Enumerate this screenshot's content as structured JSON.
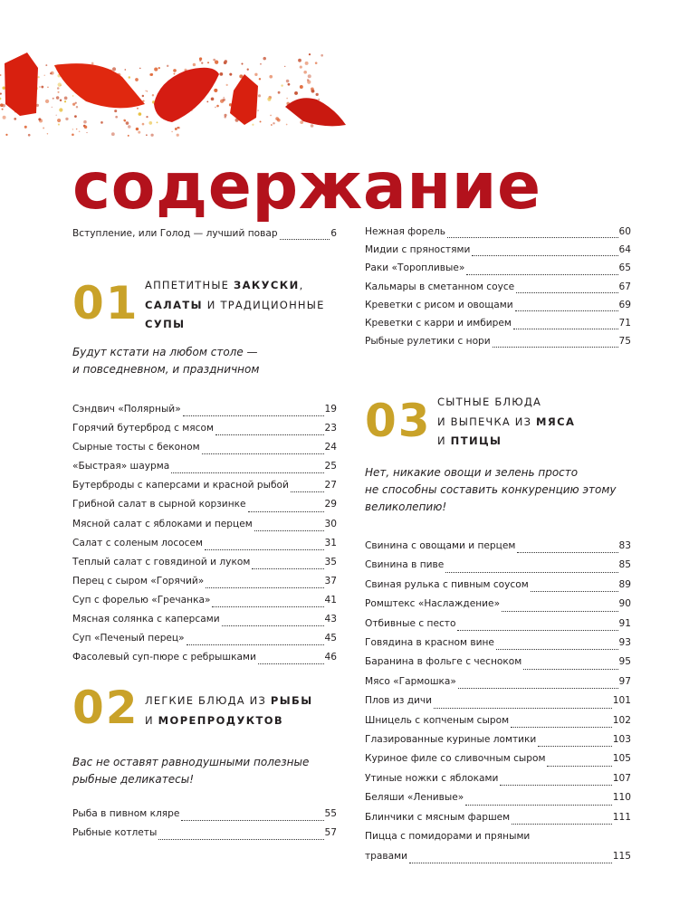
{
  "colors": {
    "title": "#b3121c",
    "section_number": "#c9a229",
    "text": "#231f20"
  },
  "decor": {
    "image": "chili-pepper-slices"
  },
  "title": "содержание",
  "intro": {
    "title": "Вступление, или Голод — лучший повар",
    "page": "6"
  },
  "sections": [
    {
      "number": "01",
      "heading_lines": [
        [
          {
            "text": "Аппетитные ",
            "bold": false
          },
          {
            "text": "закуски",
            "bold": true
          },
          {
            "text": ",",
            "bold": false
          }
        ],
        [
          {
            "text": "салаты",
            "bold": true
          },
          {
            "text": " и традиционные",
            "bold": false
          }
        ],
        [
          {
            "text": "супы",
            "bold": true
          }
        ]
      ],
      "subtitle_lines": [
        "Будут кстати на любом столе —",
        "и повседневном, и праздничном"
      ],
      "entries": [
        {
          "title": "Сэндвич «Полярный»",
          "page": "19"
        },
        {
          "title": "Горячий бутерброд с мясом",
          "page": "23"
        },
        {
          "title": "Сырные тосты с беконом",
          "page": "24"
        },
        {
          "title": "«Быстрая» шаурма",
          "page": "25"
        },
        {
          "title": "Бутерброды с каперсами и красной рыбой",
          "page": "27"
        },
        {
          "title": "Грибной салат в сырной корзинке",
          "page": "29"
        },
        {
          "title": "Мясной салат с яблоками и перцем",
          "page": "30"
        },
        {
          "title": "Салат с соленым лососем",
          "page": "31"
        },
        {
          "title": "Теплый салат с говядиной и луком",
          "page": "35"
        },
        {
          "title": "Перец с сыром «Горячий»",
          "page": "37"
        },
        {
          "title": "Суп с форелью «Гречанка»",
          "page": "41"
        },
        {
          "title": "Мясная солянка с каперсами",
          "page": "43"
        },
        {
          "title": "Суп «Печеный перец»",
          "page": "45"
        },
        {
          "title": "Фасолевый суп-пюре с ребрышками",
          "page": "46"
        }
      ]
    },
    {
      "number": "02",
      "heading_lines": [
        [
          {
            "text": "Легкие блюда из ",
            "bold": false
          },
          {
            "text": "рыбы",
            "bold": true
          }
        ],
        [
          {
            "text": "и ",
            "bold": false
          },
          {
            "text": "морепродуктов",
            "bold": true
          }
        ]
      ],
      "subtitle_lines": [
        "Вас не оставят равнодушными полезные",
        "рыбные деликатесы!"
      ],
      "entries": [
        {
          "title": "Рыба в пивном кляре",
          "page": "55"
        },
        {
          "title": "Рыбные котлеты",
          "page": "57"
        },
        {
          "title": "Нежная форель",
          "page": "60"
        },
        {
          "title": "Мидии с пряностями",
          "page": "64"
        },
        {
          "title": "Раки «Торопливые»",
          "page": "65"
        },
        {
          "title": "Кальмары в сметанном соусе",
          "page": "67"
        },
        {
          "title": "Креветки с рисом и овощами",
          "page": "69"
        },
        {
          "title": "Креветки с карри и имбирем",
          "page": "71"
        },
        {
          "title": "Рыбные рулетики с нори",
          "page": "75"
        }
      ]
    },
    {
      "number": "03",
      "heading_lines": [
        [
          {
            "text": "Сытные блюда",
            "bold": false
          }
        ],
        [
          {
            "text": "и выпечка из ",
            "bold": false
          },
          {
            "text": "мяса",
            "bold": true
          }
        ],
        [
          {
            "text": "и ",
            "bold": false
          },
          {
            "text": "птицы",
            "bold": true
          }
        ]
      ],
      "subtitle_lines": [
        "Нет, никакие овощи и зелень просто",
        "не способны составить конкуренцию этому",
        "великолепию!"
      ],
      "entries": [
        {
          "title": "Свинина с овощами и перцем",
          "page": "83"
        },
        {
          "title": "Свинина в пиве",
          "page": "85"
        },
        {
          "title": "Свиная рулька с пивным соусом",
          "page": "89"
        },
        {
          "title": "Ромштекс «Наслаждение»",
          "page": "90"
        },
        {
          "title": "Отбивные с песто",
          "page": "91"
        },
        {
          "title": "Говядина в красном вине",
          "page": "93"
        },
        {
          "title": "Баранина в фольге с чесноком",
          "page": "95"
        },
        {
          "title": "Мясо «Гармошка»",
          "page": "97"
        },
        {
          "title": "Плов из дичи",
          "page": "101"
        },
        {
          "title": "Шницель с копченым сыром",
          "page": "102"
        },
        {
          "title": "Глазированные куриные ломтики",
          "page": "103"
        },
        {
          "title": "Куриное филе со сливочным сыром",
          "page": "105"
        },
        {
          "title": "Утиные ножки с яблоками",
          "page": "107"
        },
        {
          "title": "Беляши «Ленивые»",
          "page": "110"
        },
        {
          "title": "Блинчики с мясным фаршем",
          "page": "111"
        },
        {
          "title": "Пицца с помидорами и пряными травами",
          "title_line1": "Пицца с помидорами и пряными",
          "title_line2": "травами",
          "page": "115"
        }
      ]
    }
  ]
}
